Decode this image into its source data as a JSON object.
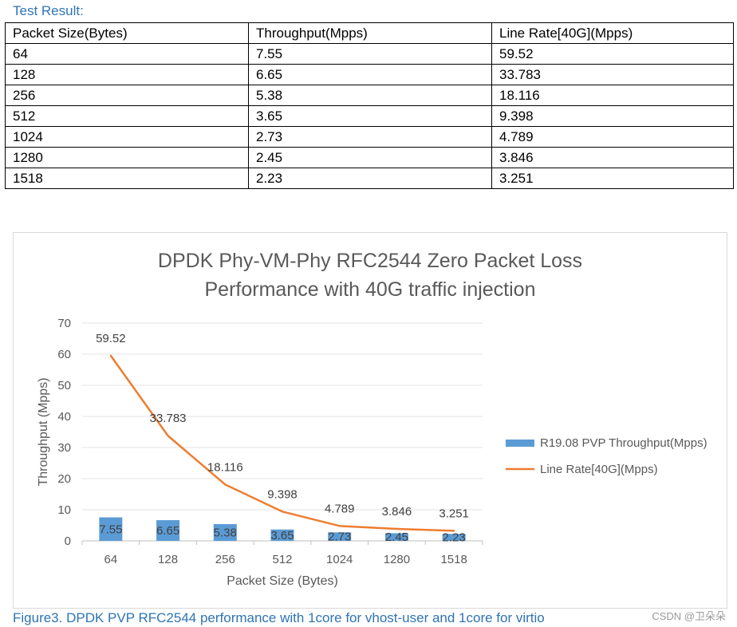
{
  "header": {
    "title": "Test Result:"
  },
  "table": {
    "columns": [
      "Packet Size(Bytes)",
      "Throughput(Mpps)",
      "Line Rate[40G](Mpps)"
    ],
    "rows": [
      [
        "64",
        "7.55",
        "59.52"
      ],
      [
        "128",
        "6.65",
        "33.783"
      ],
      [
        "256",
        "5.38",
        "18.116"
      ],
      [
        "512",
        "3.65",
        "9.398"
      ],
      [
        "1024",
        "2.73",
        "4.789"
      ],
      [
        "1280",
        "2.45",
        "3.846"
      ],
      [
        "1518",
        "2.23",
        "3.251"
      ]
    ]
  },
  "chart_data": {
    "type": "bar",
    "title": [
      "DPDK Phy-VM-Phy RFC2544 Zero Packet Loss",
      "Performance  with 40G traffic injection"
    ],
    "xlabel": "Packet Size (Bytes)",
    "ylabel": "Throughput (Mpps)",
    "ylim": [
      0,
      70
    ],
    "yticks": [
      0,
      10,
      20,
      30,
      40,
      50,
      60,
      70
    ],
    "grid": true,
    "legend_position": "right",
    "categories": [
      "64",
      "128",
      "256",
      "512",
      "1024",
      "1280",
      "1518"
    ],
    "series": [
      {
        "name": "R19.08 PVP Throughput(Mpps)",
        "type": "bar",
        "color": "#5b9bd5",
        "values": [
          7.55,
          6.65,
          5.38,
          3.65,
          2.73,
          2.45,
          2.23
        ],
        "labels": [
          "7.55",
          "6.65",
          "5.38",
          "3.65",
          "2.73",
          "2.45",
          "2.23"
        ]
      },
      {
        "name": "Line Rate[40G](Mpps)",
        "type": "line",
        "color": "#ed7d31",
        "values": [
          59.52,
          33.783,
          18.116,
          9.398,
          4.789,
          3.846,
          3.251
        ],
        "labels": [
          "59.52",
          "33.783",
          "18.116",
          "9.398",
          "4.789",
          "3.846",
          "3.251"
        ]
      }
    ]
  },
  "caption": "Figure3. DPDK PVP RFC2544 performance with 1core for vhost-user and 1core for virtio",
  "watermark": "CSDN @卫朵朵"
}
